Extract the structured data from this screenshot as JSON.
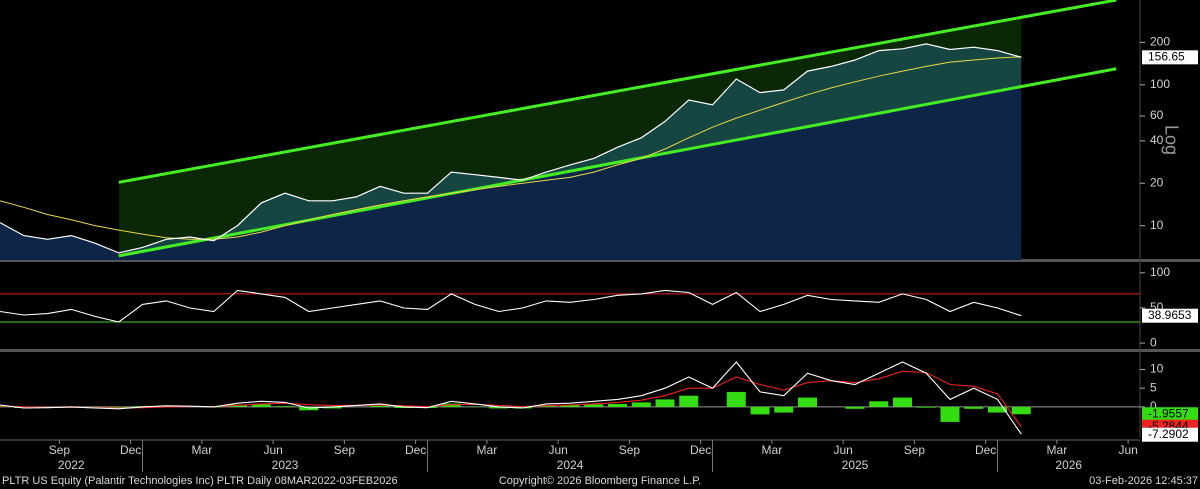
{
  "chart_data": [
    {
      "type": "line",
      "log": true,
      "scale_label": "Log",
      "x": [
        "2022-07",
        "2022-08",
        "2022-09",
        "2022-10",
        "2022-11",
        "2022-12",
        "2023-01",
        "2023-02",
        "2023-03",
        "2023-04",
        "2023-05",
        "2023-06",
        "2023-07",
        "2023-08",
        "2023-09",
        "2023-10",
        "2023-11",
        "2023-12",
        "2024-01",
        "2024-02",
        "2024-03",
        "2024-04",
        "2024-05",
        "2024-06",
        "2024-07",
        "2024-08",
        "2024-09",
        "2024-10",
        "2024-11",
        "2024-12",
        "2025-01",
        "2025-02",
        "2025-03",
        "2025-04",
        "2025-05",
        "2025-06",
        "2025-07",
        "2025-08",
        "2025-09",
        "2025-10",
        "2025-11",
        "2025-12",
        "2026-01",
        "2026-02"
      ],
      "series": [
        {
          "color": "#ffffff",
          "values": [
            10.5,
            8.5,
            8,
            8.5,
            7.5,
            6.4,
            7,
            8,
            8.3,
            7.8,
            10,
            14.5,
            17,
            15,
            15,
            16,
            19,
            17,
            17,
            24,
            23,
            22,
            21,
            24,
            27,
            30,
            36,
            42,
            55,
            78,
            72,
            110,
            88,
            92,
            125,
            135,
            150,
            175,
            180,
            195,
            178,
            185,
            175,
            156.65
          ]
        },
        {
          "color": "#e8d84a",
          "values": [
            15,
            13.5,
            12,
            11,
            10,
            9.3,
            8.7,
            8.2,
            8,
            8,
            8.3,
            9,
            10,
            11,
            12,
            13,
            14,
            15,
            16,
            17,
            18,
            19,
            20,
            21,
            22,
            24,
            27,
            30,
            35,
            42,
            50,
            58,
            66,
            75,
            85,
            95,
            105,
            115,
            125,
            135,
            145,
            150,
            155,
            158
          ]
        }
      ],
      "channel": {
        "x": [
          "2022-12",
          "2026-06"
        ],
        "upper": [
          20.3,
          400
        ],
        "lower": [
          6.1,
          130
        ],
        "color": "#44ee22"
      },
      "xlim": [
        "2022-07",
        "2026-07"
      ],
      "ylim": [
        5.7,
        400
      ],
      "yticks": [
        10,
        20,
        40,
        60,
        100,
        200
      ]
    },
    {
      "type": "line",
      "x": [
        "2022-07",
        "2022-08",
        "2022-09",
        "2022-10",
        "2022-11",
        "2022-12",
        "2023-01",
        "2023-02",
        "2023-03",
        "2023-04",
        "2023-05",
        "2023-06",
        "2023-07",
        "2023-08",
        "2023-09",
        "2023-10",
        "2023-11",
        "2023-12",
        "2024-01",
        "2024-02",
        "2024-03",
        "2024-04",
        "2024-05",
        "2024-06",
        "2024-07",
        "2024-08",
        "2024-09",
        "2024-10",
        "2024-11",
        "2024-12",
        "2025-01",
        "2025-02",
        "2025-03",
        "2025-04",
        "2025-05",
        "2025-06",
        "2025-07",
        "2025-08",
        "2025-09",
        "2025-10",
        "2025-11",
        "2025-12",
        "2026-01",
        "2026-02"
      ],
      "series": [
        {
          "color": "#ffffff",
          "values": [
            45,
            40,
            42,
            48,
            38,
            30,
            55,
            60,
            50,
            45,
            75,
            70,
            65,
            45,
            50,
            55,
            60,
            50,
            48,
            70,
            55,
            45,
            50,
            60,
            58,
            62,
            68,
            70,
            75,
            72,
            55,
            72,
            45,
            55,
            68,
            62,
            60,
            58,
            70,
            62,
            45,
            58,
            50,
            38.9653
          ]
        }
      ],
      "levels": [
        {
          "value": 70,
          "color": "#dd2222"
        },
        {
          "value": 30,
          "color": "#44cc22"
        }
      ],
      "xlim": [
        "2022-07",
        "2026-07"
      ],
      "ylim": [
        -7,
        114
      ],
      "yticks": [
        0,
        50,
        100
      ]
    },
    {
      "type": "macd",
      "x": [
        "2022-07",
        "2022-08",
        "2022-09",
        "2022-10",
        "2022-11",
        "2022-12",
        "2023-01",
        "2023-02",
        "2023-03",
        "2023-04",
        "2023-05",
        "2023-06",
        "2023-07",
        "2023-08",
        "2023-09",
        "2023-10",
        "2023-11",
        "2023-12",
        "2024-01",
        "2024-02",
        "2024-03",
        "2024-04",
        "2024-05",
        "2024-06",
        "2024-07",
        "2024-08",
        "2024-09",
        "2024-10",
        "2024-11",
        "2024-12",
        "2025-01",
        "2025-02",
        "2025-03",
        "2025-04",
        "2025-05",
        "2025-06",
        "2025-07",
        "2025-08",
        "2025-09",
        "2025-10",
        "2025-11",
        "2025-12",
        "2026-01",
        "2026-02"
      ],
      "series": [
        {
          "type": "bar",
          "color": "#33dd11",
          "values": [
            0.2,
            -0.3,
            -0.1,
            0.1,
            -0.1,
            -0.2,
            0.2,
            0.3,
            0.1,
            -0.1,
            0.6,
            0.7,
            0.2,
            -0.9,
            -0.4,
            0,
            0.3,
            -0.3,
            -0.3,
            0.9,
            0.1,
            -0.4,
            -0.4,
            0.5,
            0.5,
            0.7,
            0.8,
            1.2,
            2,
            3,
            0,
            4,
            -2,
            -1.5,
            2.5,
            0,
            -0.5,
            1.5,
            2.5,
            -0.2,
            -4,
            -0.5,
            -1.5,
            -1.9557
          ]
        },
        {
          "type": "line",
          "color": "#ee2222",
          "values": [
            0.3,
            0,
            -0.1,
            -0.1,
            -0.2,
            -0.3,
            -0.2,
            0,
            0.1,
            0.1,
            0.4,
            0.8,
            1,
            0.6,
            0.4,
            0.4,
            0.5,
            0.3,
            0.1,
            0.6,
            0.7,
            0.4,
            0.1,
            0.3,
            0.5,
            0.8,
            1.2,
            1.8,
            3,
            5,
            5,
            8,
            6,
            4.5,
            6.5,
            7,
            6.5,
            7.5,
            9.5,
            9.2,
            6,
            5.5,
            3.5,
            -5.2844
          ]
        },
        {
          "type": "line",
          "color": "#ffffff",
          "values": [
            0.5,
            -0.3,
            -0.2,
            0,
            -0.3,
            -0.5,
            0,
            0.3,
            0.2,
            0,
            1,
            1.5,
            1.2,
            -0.3,
            0,
            0.4,
            0.8,
            0,
            -0.2,
            1.5,
            0.8,
            0,
            -0.3,
            0.8,
            1,
            1.5,
            2,
            3,
            5,
            8,
            5,
            12,
            4,
            3,
            9,
            7,
            6,
            9,
            12,
            9,
            2,
            5,
            2,
            -7.2902
          ]
        }
      ],
      "xlim": [
        "2022-07",
        "2026-07"
      ],
      "ylim": [
        -8.3,
        14.4
      ],
      "yticks": [
        0,
        5,
        10
      ],
      "xticks": [
        {
          "value": "2022-09",
          "label": "Sep"
        },
        {
          "value": "2022-12",
          "label": "Dec"
        },
        {
          "value": "2023-03",
          "label": "Mar"
        },
        {
          "value": "2023-06",
          "label": "Jun"
        },
        {
          "value": "2023-09",
          "label": "Sep"
        },
        {
          "value": "2023-12",
          "label": "Dec"
        },
        {
          "value": "2024-03",
          "label": "Mar"
        },
        {
          "value": "2024-06",
          "label": "Jun"
        },
        {
          "value": "2024-09",
          "label": "Sep"
        },
        {
          "value": "2024-12",
          "label": "Dec"
        },
        {
          "value": "2025-03",
          "label": "Mar"
        },
        {
          "value": "2025-06",
          "label": "Jun"
        },
        {
          "value": "2025-09",
          "label": "Sep"
        },
        {
          "value": "2025-12",
          "label": "Dec"
        },
        {
          "value": "2026-03",
          "label": "Mar"
        },
        {
          "value": "2026-06",
          "label": "Jun"
        }
      ],
      "x_year_labels": [
        "2022",
        "2023",
        "2024",
        "2025",
        "2026"
      ]
    }
  ],
  "footer": {
    "left": "PLTR US Equity (Palantir Technologies Inc) PLTR Daily 08MAR2022-03FEB2026",
    "center": "Copyright© 2026 Bloomberg Finance L.P.",
    "right": "03-Feb-2026 12:45:37"
  }
}
